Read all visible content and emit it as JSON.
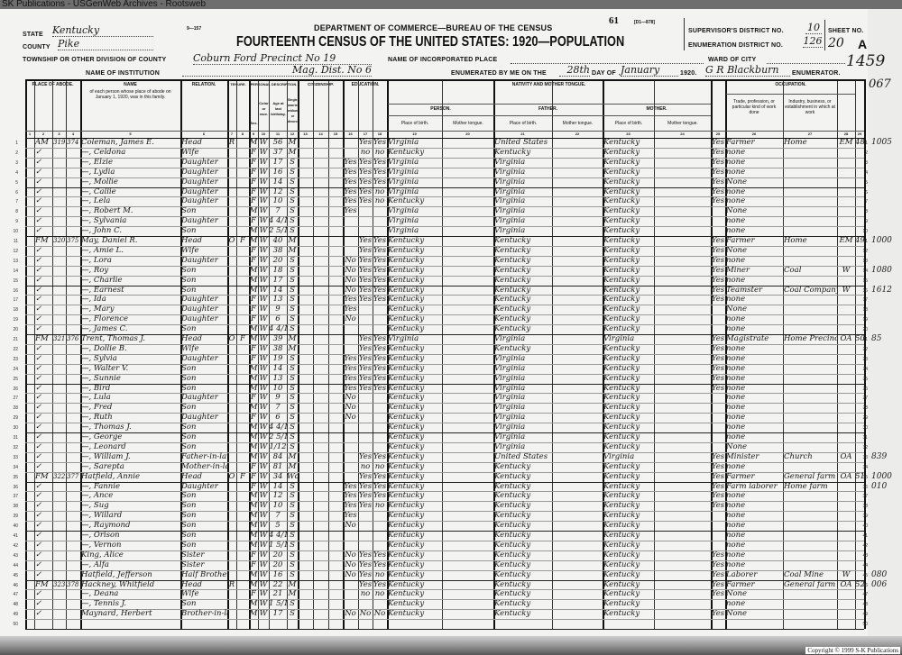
{
  "watermark": "SK Publications - USGenWeb Archives - Rootsweb",
  "copyright": "Copyright © 1999 S-K Publications",
  "header": {
    "form_no": "9—157",
    "department": "DEPARTMENT OF COMMERCE—BUREAU OF THE CENSUS",
    "title": "FOURTEENTH CENSUS OF THE UNITED STATES: 1920—POPULATION",
    "page_no": "61",
    "form_code": "[D1—878]",
    "state_label": "STATE",
    "state": "Kentucky",
    "county_label": "COUNTY",
    "county": "Pike",
    "township_label": "TOWNSHIP OR OTHER DIVISION OF COUNTY",
    "township": "Coburn Ford Precinct No 19",
    "institution_label": "NAME OF INSTITUTION",
    "institution": "Mag. Dist. No 6",
    "incorporated_label": "NAME OF INCORPORATED PLACE",
    "ward_label": "WARD OF CITY",
    "enumerated_label": "ENUMERATED BY ME ON THE",
    "day": "28th",
    "day_of_label": "DAY OF",
    "month": "January",
    "year": "1920.",
    "enumerator": "G R Blackburn",
    "enumerator_label": "ENUMERATOR.",
    "supervisor_label": "SUPERVISOR'S DISTRICT NO.",
    "supervisor_no": "10",
    "enumeration_label": "ENUMERATION DISTRICT NO.",
    "enumeration_no": "126",
    "sheet_label": "SHEET NO.",
    "sheet_no": "20",
    "sheet_side": "A",
    "stamp_no": "1459",
    "corner_no": "067"
  },
  "sections": {
    "abode": "PLACE OF ABODE.",
    "name": "NAME",
    "name_desc": "of each person whose place of abode on January 1, 1920, was in this family.",
    "relation": "RELATION.",
    "tenure": "TENURE.",
    "personal": "PERSONAL DESCRIPTION.",
    "citizenship": "CITIZENSHIP.",
    "education": "EDUCATION.",
    "nativity": "NATIVITY AND MOTHER TONGUE.",
    "person": "PERSON.",
    "father": "FATHER.",
    "mother": "MOTHER.",
    "place_of_birth": "Place of birth.",
    "mother_tongue": "Mother tongue.",
    "occupation": "OCCUPATION.",
    "trade": "Trade, profession, or particular kind of work done",
    "industry": "Industry, business, or establishment in which at work",
    "sex": "Sex.",
    "race": "Color or race.",
    "age": "Age at last birthday.",
    "marital": "Single, married, widowed, or divorced."
  },
  "rows": [
    [
      "1",
      "AM",
      "319",
      "374",
      "Coleman, James E.",
      "Head",
      "R",
      "",
      "M",
      "W",
      "56",
      "M",
      "",
      "Yes",
      "Yes",
      "Virginia",
      "United States",
      "Kentucky",
      "Yes",
      "Farmer",
      "Home",
      "EM",
      "48",
      "1005"
    ],
    [
      "2",
      "✓",
      "",
      "",
      "—, Celdona",
      "Wife",
      "",
      "",
      "F",
      "W",
      "37",
      "M",
      "",
      "no",
      "no",
      "Kentucky",
      "Kentucky",
      "Kentucky",
      "Yes",
      "none",
      "",
      "",
      "",
      ""
    ],
    [
      "3",
      "✓",
      "",
      "",
      "—, Elzie",
      "Daughter",
      "",
      "",
      "F",
      "W",
      "17",
      "S",
      "Yes",
      "Yes",
      "Yes",
      "Virginia",
      "Virginia",
      "Kentucky",
      "Yes",
      "none",
      "",
      "",
      "",
      ""
    ],
    [
      "4",
      "✓",
      "",
      "",
      "—, Lydia",
      "Daughter",
      "",
      "",
      "F",
      "W",
      "16",
      "S",
      "Yes",
      "Yes",
      "Yes",
      "Virginia",
      "Virginia",
      "Kentucky",
      "Yes",
      "none",
      "",
      "",
      "",
      ""
    ],
    [
      "5",
      "✓",
      "",
      "",
      "—, Mollie",
      "Daughter",
      "",
      "",
      "F",
      "W",
      "14",
      "S",
      "Yes",
      "Yes",
      "Yes",
      "Virginia",
      "Virginia",
      "Kentucky",
      "Yes",
      "None",
      "",
      "",
      "",
      ""
    ],
    [
      "6",
      "✓",
      "",
      "",
      "—, Callie",
      "Daughter",
      "",
      "",
      "F",
      "W",
      "12",
      "S",
      "Yes",
      "Yes",
      "no",
      "Virginia",
      "Virginia",
      "Kentucky",
      "Yes",
      "none",
      "",
      "",
      "",
      ""
    ],
    [
      "7",
      "✓",
      "",
      "",
      "—, Lela",
      "Daughter",
      "",
      "",
      "F",
      "W",
      "10",
      "S",
      "Yes",
      "Yes",
      "no",
      "Kentucky",
      "Virginia",
      "Kentucky",
      "Yes",
      "none",
      "",
      "",
      "",
      ""
    ],
    [
      "8",
      "✓",
      "",
      "",
      "—, Robert M.",
      "Son",
      "",
      "",
      "M",
      "W",
      "7",
      "S",
      "Yes",
      "",
      "",
      "Virginia",
      "Virginia",
      "Kentucky",
      "",
      "None",
      "",
      "",
      "",
      ""
    ],
    [
      "9",
      "✓",
      "",
      "",
      "—, Sylvania",
      "Daughter",
      "",
      "",
      "F",
      "W",
      "4 4/12",
      "S",
      "",
      "",
      "",
      "Virginia",
      "Virginia",
      "Kentucky",
      "",
      "none",
      "",
      "",
      "",
      ""
    ],
    [
      "10",
      "✓",
      "",
      "",
      "—, John C.",
      "Son",
      "",
      "",
      "M",
      "W",
      "2 5/12",
      "S",
      "",
      "",
      "",
      "Virginia",
      "Virginia",
      "Kentucky",
      "",
      "none",
      "",
      "",
      "",
      ""
    ],
    [
      "11",
      "FM",
      "320",
      "375",
      "May, Daniel R.",
      "Head",
      "O",
      "F",
      "M",
      "W",
      "40",
      "M",
      "",
      "Yes",
      "Yes",
      "Kentucky",
      "Kentucky",
      "Kentucky",
      "Yes",
      "Farmer",
      "Home",
      "EM",
      "49",
      "1000"
    ],
    [
      "12",
      "✓",
      "",
      "",
      "—, Amie L.",
      "Wife",
      "",
      "",
      "F",
      "W",
      "38",
      "M",
      "",
      "Yes",
      "Yes",
      "Kentucky",
      "Kentucky",
      "Kentucky",
      "Yes",
      "None",
      "",
      "",
      "",
      ""
    ],
    [
      "13",
      "✓",
      "",
      "",
      "—, Lora",
      "Daughter",
      "",
      "",
      "F",
      "W",
      "20",
      "S",
      "No",
      "Yes",
      "Yes",
      "Kentucky",
      "Kentucky",
      "Kentucky",
      "Yes",
      "none",
      "",
      "",
      "",
      ""
    ],
    [
      "14",
      "✓",
      "",
      "",
      "—, Roy",
      "Son",
      "",
      "",
      "M",
      "W",
      "18",
      "S",
      "No",
      "Yes",
      "Yes",
      "Kentucky",
      "Kentucky",
      "Kentucky",
      "Yes",
      "Miner",
      "Coal",
      "W",
      "",
      "1080"
    ],
    [
      "15",
      "✓",
      "",
      "",
      "—, Charlie",
      "Son",
      "",
      "",
      "M",
      "W",
      "17",
      "S",
      "No",
      "Yes",
      "Yes",
      "Kentucky",
      "Kentucky",
      "Kentucky",
      "Yes",
      "none",
      "",
      "",
      "",
      ""
    ],
    [
      "16",
      "✓",
      "",
      "",
      "—, Earnest",
      "Son",
      "",
      "",
      "M",
      "W",
      "14",
      "S",
      "No",
      "Yes",
      "Yes",
      "Kentucky",
      "Kentucky",
      "Kentucky",
      "Yes",
      "Teamster",
      "Coal Company",
      "W",
      "",
      "1612"
    ],
    [
      "17",
      "✓",
      "",
      "",
      "—, Ida",
      "Daughter",
      "",
      "",
      "F",
      "W",
      "13",
      "S",
      "Yes",
      "Yes",
      "Yes",
      "Kentucky",
      "Kentucky",
      "Kentucky",
      "Yes",
      "none",
      "",
      "",
      "",
      ""
    ],
    [
      "18",
      "✓",
      "",
      "",
      "—, Mary",
      "Daughter",
      "",
      "",
      "F",
      "W",
      "9",
      "S",
      "Yes",
      "",
      "",
      "Kentucky",
      "Kentucky",
      "Kentucky",
      "",
      "None",
      "",
      "",
      "",
      ""
    ],
    [
      "19",
      "✓",
      "",
      "",
      "—, Florence",
      "Daughter",
      "",
      "",
      "F",
      "W",
      "6",
      "S",
      "No",
      "",
      "",
      "Kentucky",
      "Kentucky",
      "Kentucky",
      "",
      "none",
      "",
      "",
      "",
      ""
    ],
    [
      "20",
      "✓",
      "",
      "",
      "—, James C.",
      "Son",
      "",
      "",
      "M",
      "W",
      "4 4/12",
      "S",
      "",
      "",
      "",
      "Kentucky",
      "Kentucky",
      "Kentucky",
      "",
      "none",
      "",
      "",
      "",
      ""
    ],
    [
      "21",
      "FM",
      "321",
      "376",
      "Trent, Thomas J.",
      "Head",
      "O",
      "F",
      "M",
      "W",
      "39",
      "M",
      "",
      "Yes",
      "Yes",
      "Virginia",
      "Virginia",
      "Virginia",
      "Yes",
      "Magistrate",
      "Home Precinct",
      "OA",
      "50",
      "85"
    ],
    [
      "22",
      "✓",
      "",
      "",
      "—, Dollie B.",
      "Wife",
      "",
      "",
      "F",
      "W",
      "38",
      "M",
      "",
      "Yes",
      "Yes",
      "Kentucky",
      "Kentucky",
      "Kentucky",
      "Yes",
      "none",
      "",
      "",
      "",
      ""
    ],
    [
      "23",
      "✓",
      "",
      "",
      "—, Sylvia",
      "Daughter",
      "",
      "",
      "F",
      "W",
      "19",
      "S",
      "Yes",
      "Yes",
      "Yes",
      "Kentucky",
      "Virginia",
      "Kentucky",
      "Yes",
      "none",
      "",
      "",
      "",
      ""
    ],
    [
      "24",
      "✓",
      "",
      "",
      "—, Walter V.",
      "Son",
      "",
      "",
      "M",
      "W",
      "14",
      "S",
      "Yes",
      "Yes",
      "Yes",
      "Kentucky",
      "Virginia",
      "Kentucky",
      "Yes",
      "none",
      "",
      "",
      "",
      ""
    ],
    [
      "25",
      "✓",
      "",
      "",
      "—, Sunnie",
      "Son",
      "",
      "",
      "M",
      "W",
      "13",
      "S",
      "Yes",
      "Yes",
      "Yes",
      "Kentucky",
      "Virginia",
      "Kentucky",
      "Yes",
      "none",
      "",
      "",
      "",
      ""
    ],
    [
      "26",
      "✓",
      "",
      "",
      "—, Bird",
      "Son",
      "",
      "",
      "M",
      "W",
      "10",
      "S",
      "Yes",
      "Yes",
      "Yes",
      "Kentucky",
      "Virginia",
      "Kentucky",
      "Yes",
      "none",
      "",
      "",
      "",
      ""
    ],
    [
      "27",
      "✓",
      "",
      "",
      "—, Lula",
      "Daughter",
      "",
      "",
      "F",
      "W",
      "9",
      "S",
      "No",
      "",
      "",
      "Kentucky",
      "Virginia",
      "Kentucky",
      "",
      "none",
      "",
      "",
      "",
      ""
    ],
    [
      "28",
      "✓",
      "",
      "",
      "—, Fred",
      "Son",
      "",
      "",
      "M",
      "W",
      "7",
      "S",
      "No",
      "",
      "",
      "Kentucky",
      "Virginia",
      "Kentucky",
      "",
      "none",
      "",
      "",
      "",
      ""
    ],
    [
      "29",
      "✓",
      "",
      "",
      "—, Ruth",
      "Daughter",
      "",
      "",
      "F",
      "W",
      "6",
      "S",
      "No",
      "",
      "",
      "Kentucky",
      "Virginia",
      "Kentucky",
      "",
      "none",
      "",
      "",
      "",
      ""
    ],
    [
      "30",
      "✓",
      "",
      "",
      "—, Thomas J.",
      "Son",
      "",
      "",
      "M",
      "W",
      "4 4/12",
      "S",
      "",
      "",
      "",
      "Kentucky",
      "Virginia",
      "Kentucky",
      "",
      "none",
      "",
      "",
      "",
      ""
    ],
    [
      "31",
      "✓",
      "",
      "",
      "—, George",
      "Son",
      "",
      "",
      "M",
      "W",
      "2 5/12",
      "S",
      "",
      "",
      "",
      "Kentucky",
      "Virginia",
      "Kentucky",
      "",
      "none",
      "",
      "",
      "",
      ""
    ],
    [
      "32",
      "✓",
      "",
      "",
      "—, Leonard",
      "Son",
      "",
      "",
      "M",
      "W",
      "1/12",
      "S",
      "",
      "",
      "",
      "Kentucky",
      "Virginia",
      "Kentucky",
      "",
      "None",
      "",
      "",
      "",
      ""
    ],
    [
      "33",
      "✓",
      "",
      "",
      "—, William J.",
      "Father-in-law",
      "",
      "",
      "M",
      "W",
      "84",
      "M",
      "",
      "Yes",
      "Yes",
      "Kentucky",
      "United States",
      "Virginia",
      "Yes",
      "Minister",
      "Church",
      "OA",
      "",
      "839"
    ],
    [
      "34",
      "✓",
      "",
      "",
      "—, Sarepta",
      "Mother-in-law",
      "",
      "",
      "F",
      "W",
      "81",
      "M",
      "",
      "no",
      "no",
      "Kentucky",
      "Kentucky",
      "Kentucky",
      "Yes",
      "none",
      "",
      "",
      "",
      ""
    ],
    [
      "35",
      "FM",
      "322",
      "377",
      "Hatfield, Annie",
      "Head",
      "O",
      "F",
      "F",
      "W",
      "34",
      "Wd",
      "",
      "Yes",
      "Yes",
      "Kentucky",
      "Kentucky",
      "Kentucky",
      "Yes",
      "Farmer",
      "General farm",
      "OA",
      "51",
      "1000"
    ],
    [
      "36",
      "✓",
      "",
      "",
      "—, Fannie",
      "Daughter",
      "",
      "",
      "F",
      "W",
      "14",
      "S",
      "Yes",
      "Yes",
      "Yes",
      "Kentucky",
      "Kentucky",
      "Kentucky",
      "Yes",
      "Farm laborer",
      "Home farm",
      "",
      "",
      "010"
    ],
    [
      "37",
      "✓",
      "",
      "",
      "—, Ance",
      "Son",
      "",
      "",
      "M",
      "W",
      "12",
      "S",
      "Yes",
      "Yes",
      "Yes",
      "Kentucky",
      "Kentucky",
      "Kentucky",
      "Yes",
      "none",
      "",
      "",
      "",
      ""
    ],
    [
      "38",
      "✓",
      "",
      "",
      "—, Sug",
      "Son",
      "",
      "",
      "M",
      "W",
      "10",
      "S",
      "Yes",
      "Yes",
      "no",
      "Kentucky",
      "Kentucky",
      "Kentucky",
      "Yes",
      "none",
      "",
      "",
      "",
      ""
    ],
    [
      "39",
      "✓",
      "",
      "",
      "—, Willard",
      "Son",
      "",
      "",
      "M",
      "W",
      "7",
      "S",
      "Yes",
      "",
      "",
      "Kentucky",
      "Kentucky",
      "Kentucky",
      "",
      "none",
      "",
      "",
      "",
      ""
    ],
    [
      "40",
      "✓",
      "",
      "",
      "—, Raymond",
      "Son",
      "",
      "",
      "M",
      "W",
      "5",
      "S",
      "No",
      "",
      "",
      "Kentucky",
      "Kentucky",
      "Kentucky",
      "",
      "none",
      "",
      "",
      "",
      ""
    ],
    [
      "41",
      "✓",
      "",
      "",
      "—, Orison",
      "Son",
      "",
      "",
      "M",
      "W",
      "4 4/12",
      "S",
      "",
      "",
      "",
      "Kentucky",
      "Kentucky",
      "Kentucky",
      "",
      "none",
      "",
      "",
      "",
      ""
    ],
    [
      "42",
      "✓",
      "",
      "",
      "—, Vernon",
      "Son",
      "",
      "",
      "M",
      "W",
      "1 5/12",
      "S",
      "",
      "",
      "",
      "Kentucky",
      "Kentucky",
      "Kentucky",
      "",
      "none",
      "",
      "",
      "",
      ""
    ],
    [
      "43",
      "✓",
      "",
      "",
      "King, Alice",
      "Sister",
      "",
      "",
      "F",
      "W",
      "20",
      "S",
      "No",
      "Yes",
      "Yes",
      "Kentucky",
      "Kentucky",
      "Kentucky",
      "Yes",
      "none",
      "",
      "",
      "",
      ""
    ],
    [
      "44",
      "✓",
      "",
      "",
      "—, Alfa",
      "Sister",
      "",
      "",
      "F",
      "W",
      "20",
      "S",
      "No",
      "Yes",
      "Yes",
      "Kentucky",
      "Kentucky",
      "Kentucky",
      "Yes",
      "none",
      "",
      "",
      "",
      ""
    ],
    [
      "45",
      "✓",
      "",
      "",
      "Hatfield, Jefferson",
      "Half Brother",
      "",
      "",
      "M",
      "W",
      "16",
      "S",
      "No",
      "Yes",
      "no",
      "Kentucky",
      "Kentucky",
      "Kentucky",
      "Yes",
      "Laborer",
      "Coal Mine",
      "W",
      "",
      "080"
    ],
    [
      "46",
      "FM",
      "323",
      "378",
      "Hackney, Whitfield",
      "Head",
      "R",
      "",
      "M",
      "W",
      "22",
      "M",
      "",
      "Yes",
      "Yes",
      "Kentucky",
      "Kentucky",
      "Kentucky",
      "Yes",
      "Farmer",
      "General farm",
      "OA",
      "52",
      "006"
    ],
    [
      "47",
      "✓",
      "",
      "",
      "—, Deana",
      "Wife",
      "",
      "",
      "F",
      "W",
      "21",
      "M",
      "",
      "no",
      "no",
      "Kentucky",
      "Kentucky",
      "Kentucky",
      "Yes",
      "None",
      "",
      "",
      "",
      ""
    ],
    [
      "48",
      "✓",
      "",
      "",
      "—, Tennis J.",
      "Son",
      "",
      "",
      "M",
      "W",
      "1 5/12",
      "S",
      "",
      "",
      "",
      "Kentucky",
      "Kentucky",
      "Kentucky",
      "",
      "none",
      "",
      "",
      "",
      ""
    ],
    [
      "49",
      "✓",
      "",
      "",
      "Maynard, Herbert",
      "Brother-in-law",
      "",
      "",
      "M",
      "W",
      "17",
      "S",
      "No",
      "No",
      "No",
      "Kentucky",
      "Kentucky",
      "Kentucky",
      "Yes",
      "None",
      "",
      "",
      "",
      ""
    ],
    [
      "50",
      "",
      "",
      "",
      "",
      "",
      "",
      "",
      "",
      "",
      "",
      "",
      "",
      "",
      "",
      "",
      "",
      "",
      "",
      "",
      "",
      "",
      "",
      ""
    ]
  ]
}
